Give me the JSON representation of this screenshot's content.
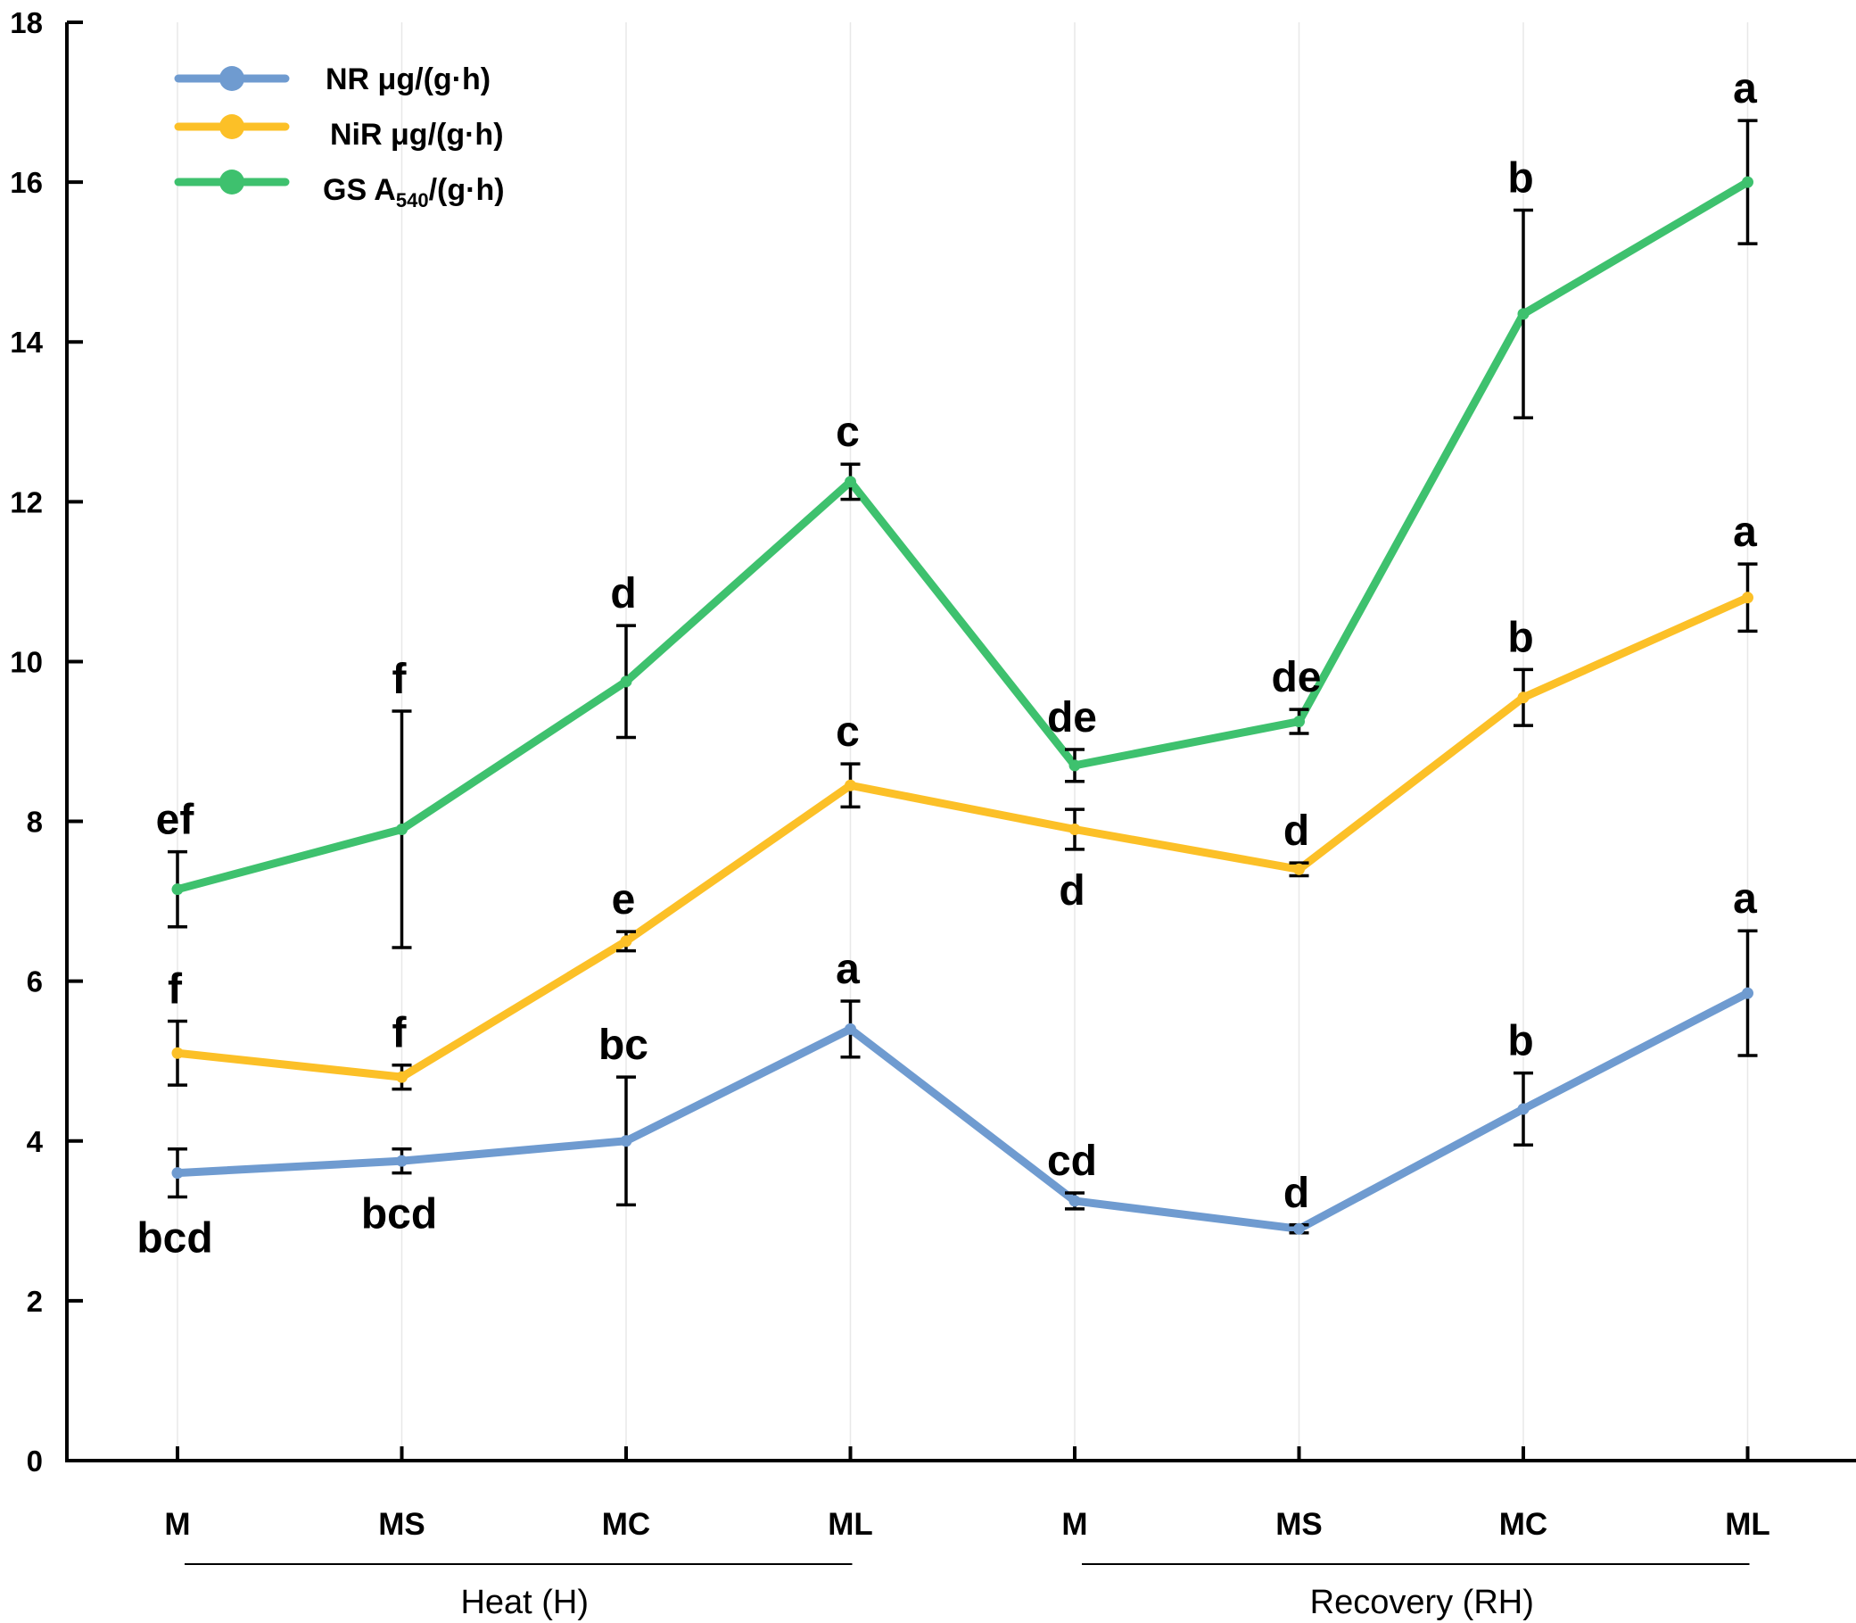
{
  "chart_data": {
    "type": "line",
    "title": "",
    "xlabel": "",
    "ylabel": "",
    "ylim": [
      0,
      18
    ],
    "yticks": [
      0,
      2,
      4,
      6,
      8,
      10,
      12,
      14,
      16,
      18
    ],
    "categories": [
      "M",
      "MS",
      "MC",
      "ML",
      "M",
      "MS",
      "MC",
      "ML"
    ],
    "groups": [
      {
        "label": "Heat (H)",
        "start": 0,
        "end": 3
      },
      {
        "label": "Recovery (RH)",
        "start": 4,
        "end": 7
      }
    ],
    "legend_position": "top-left",
    "series": [
      {
        "name": "NR μg/(g·h)",
        "legend_prefix": "NR μg/(g·h)",
        "legend_sub": "",
        "legend_suffix": "",
        "color": "#6f9bd0",
        "values": [
          3.6,
          3.75,
          4.0,
          5.4,
          3.25,
          2.9,
          4.4,
          5.85
        ],
        "errors": [
          0.3,
          0.15,
          0.8,
          0.35,
          0.1,
          0.05,
          0.45,
          0.78
        ],
        "letters": [
          "bcd",
          "bcd",
          "bc",
          "a",
          "cd",
          "d",
          "b",
          "a"
        ],
        "letter_pos": [
          "below",
          "below",
          "above",
          "above",
          "above",
          "above",
          "above",
          "above"
        ]
      },
      {
        "name": "NiR μg/(g·h)",
        "legend_prefix": "NiR μg/(g·h)",
        "legend_sub": "",
        "legend_suffix": "",
        "color": "#fcc027",
        "values": [
          5.1,
          4.8,
          6.5,
          8.45,
          7.9,
          7.4,
          9.55,
          10.8
        ],
        "errors": [
          0.4,
          0.15,
          0.12,
          0.27,
          0.25,
          0.08,
          0.35,
          0.42
        ],
        "letters": [
          "f",
          "f",
          "e",
          "c",
          "d",
          "d",
          "b",
          "a"
        ],
        "letter_pos": [
          "above",
          "above",
          "above",
          "above",
          "below",
          "above",
          "above",
          "above"
        ]
      },
      {
        "name": "GS A540/(g·h)",
        "legend_prefix": "GS A",
        "legend_sub": "540",
        "legend_suffix": "/(g·h)",
        "color": "#3ec16e",
        "values": [
          7.15,
          7.9,
          9.75,
          12.25,
          8.7,
          9.25,
          14.35,
          16.0
        ],
        "errors": [
          0.47,
          1.48,
          0.7,
          0.22,
          0.2,
          0.15,
          1.3,
          0.77
        ],
        "letters": [
          "ef",
          "f",
          "d",
          "c",
          "de",
          "de",
          "b",
          "a"
        ],
        "letter_pos": [
          "above",
          "above",
          "above",
          "above",
          "above",
          "above",
          "above",
          "above"
        ]
      }
    ]
  }
}
